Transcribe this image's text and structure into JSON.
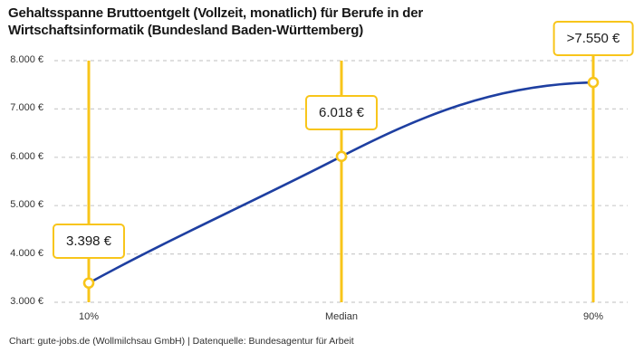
{
  "title": {
    "line1": "Gehaltsspanne Bruttoentgelt (Vollzeit, monatlich) für Berufe in der",
    "line2": "Wirtschaftsinformatik (Bundesland Baden-Württemberg)"
  },
  "footer": {
    "credit": "Chart: gute-jobs.de (Wollmilchsau GmbH) | Datenquelle: Bundesagentur für Arbeit"
  },
  "chart_data": {
    "type": "line",
    "title": "Gehaltsspanne Bruttoentgelt (Vollzeit, monatlich) für Berufe in der Wirtschaftsinformatik (Bundesland Baden-Württemberg)",
    "categories": [
      "10%",
      "Median",
      "90%"
    ],
    "values": [
      3398,
      6018,
      7550
    ],
    "value_labels": [
      "3.398 €",
      "6.018 €",
      ">7.550 €"
    ],
    "xlabel": "",
    "ylabel": "",
    "ylim": [
      3000,
      8000
    ],
    "yticks": [
      8000,
      7000,
      6000,
      5000,
      4000,
      3000
    ],
    "ytick_labels": [
      "8.000 €",
      "7.000 €",
      "6.000 €",
      "5.000 €",
      "4.000 €",
      "3.000 €"
    ],
    "grid": "horizontal-dashed",
    "legend": "none",
    "colors": {
      "line": "#1e3fa1",
      "accent": "#f8c51a",
      "grid": "#cccccc",
      "text": "#1a1a1a",
      "marker_fill": "#ffffff"
    }
  }
}
